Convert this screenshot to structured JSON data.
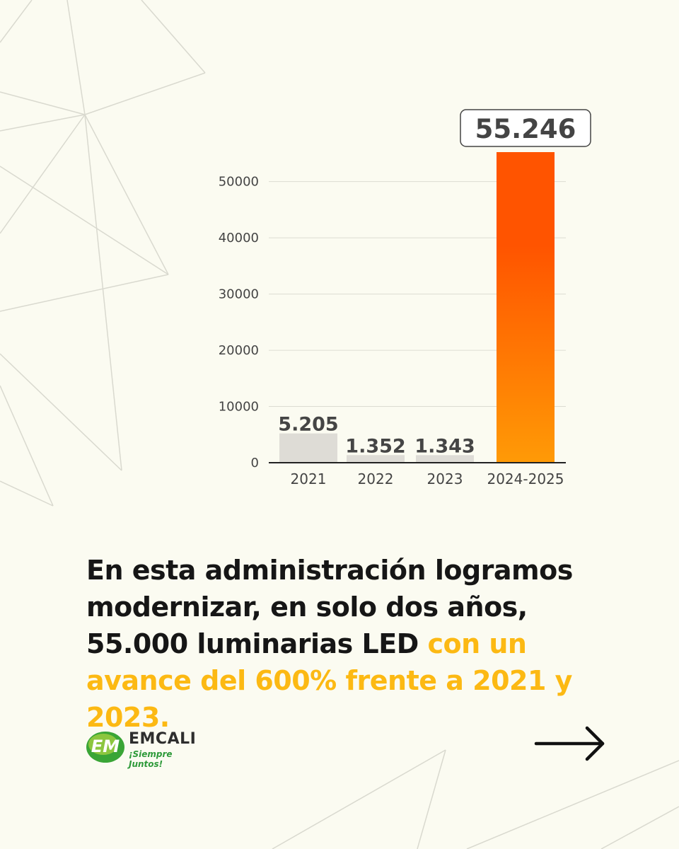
{
  "chart_data": {
    "type": "bar",
    "categories": [
      "2021",
      "2022",
      "2023",
      "2024-2025"
    ],
    "values": [
      5205,
      1352,
      1343,
      55246
    ],
    "data_labels": [
      "5.205",
      "1.352",
      "1.343",
      "55.246"
    ],
    "highlight_index": 3,
    "yticks": [
      0,
      10000,
      20000,
      30000,
      40000,
      50000
    ],
    "ytick_labels": [
      "0",
      "10000",
      "20000",
      "30000",
      "40000",
      "50000"
    ],
    "ylim": [
      0,
      55246
    ],
    "grid": true,
    "colors": {
      "bar_default": "#dedcd6",
      "bar_highlight_top": "#ff5400",
      "bar_highlight_bottom": "#ff9a06",
      "grid": "#dcdcd2",
      "axis": "#222222"
    },
    "title": "",
    "xlabel": "",
    "ylabel": ""
  },
  "headline": {
    "plain": "En esta administración logramos modernizar, en solo dos años, 55.000 luminarias LED ",
    "highlight": "con un avance del 600% frente a 2021 y 2023."
  },
  "logo": {
    "name": "EMCALI",
    "tagline": "¡Siempre Juntos!",
    "mark_text": "EM"
  },
  "colors": {
    "background": "#fbfbf1",
    "headline_text": "#161616",
    "headline_accent": "#fcb913",
    "brand_green": "#2e9a3a"
  },
  "icons": {
    "next": "arrow-right-icon"
  }
}
